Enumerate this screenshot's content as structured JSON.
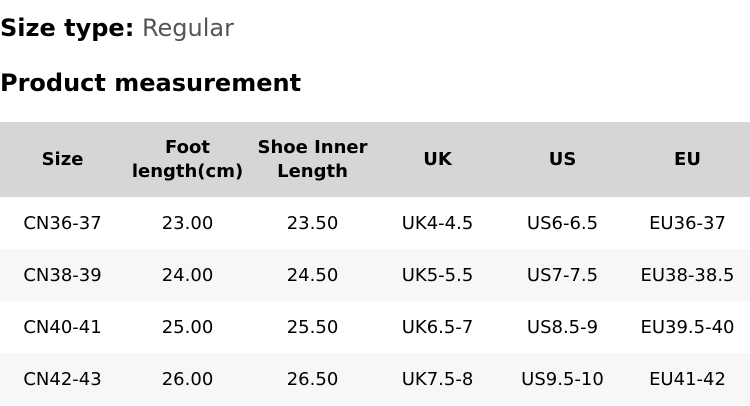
{
  "size_type": {
    "label": "Size type:",
    "value": "Regular"
  },
  "section_title": "Product measurement",
  "table": {
    "headers": [
      "Size",
      "Foot length(cm)",
      "Shoe Inner Length",
      "UK",
      "US",
      "EU"
    ],
    "rows": [
      [
        "CN36-37",
        "23.00",
        "23.50",
        "UK4-4.5",
        "US6-6.5",
        "EU36-37"
      ],
      [
        "CN38-39",
        "24.00",
        "24.50",
        "UK5-5.5",
        "US7-7.5",
        "EU38-38.5"
      ],
      [
        "CN40-41",
        "25.00",
        "25.50",
        "UK6.5-7",
        "US8.5-9",
        "EU39.5-40"
      ],
      [
        "CN42-43",
        "26.00",
        "26.50",
        "UK7.5-8",
        "US9.5-10",
        "EU41-42"
      ]
    ]
  }
}
